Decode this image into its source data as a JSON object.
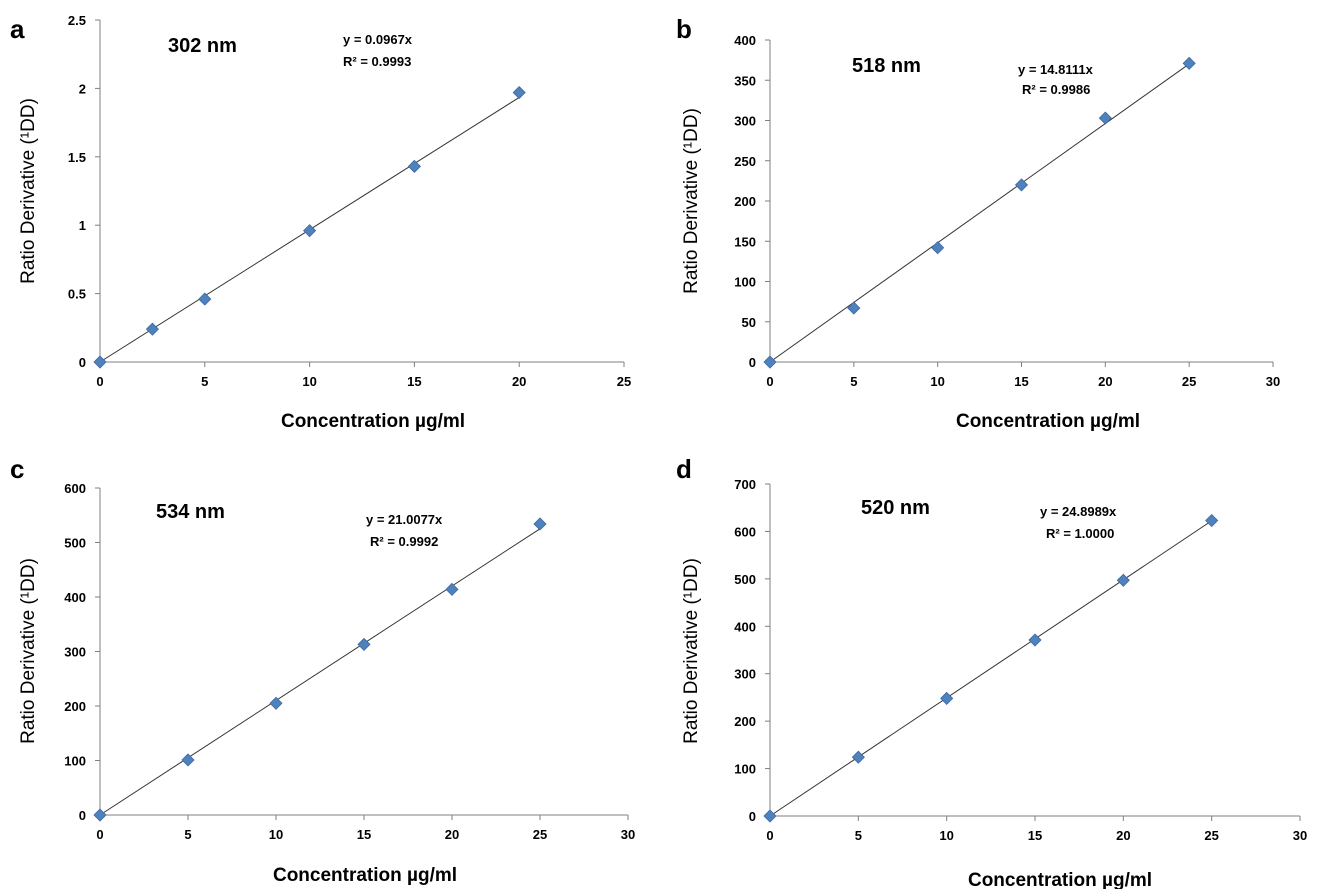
{
  "chart_data": [
    {
      "panel": "a",
      "type": "scatter",
      "annotation": "302 nm",
      "equation": "y = 0.0967x",
      "r2": "R² = 0.9993",
      "xlabel": "Concentration µg/ml",
      "ylabel": "Ratio Derivative (¹DD)",
      "xlim": [
        0,
        25
      ],
      "ylim": [
        0,
        2.5
      ],
      "x_ticks": [
        "0",
        "5",
        "10",
        "15",
        "20",
        "25"
      ],
      "y_ticks": [
        "0",
        "0.5",
        "1",
        "1.5",
        "2",
        "2.5"
      ],
      "x": [
        0,
        2.5,
        5,
        10,
        15,
        20
      ],
      "y": [
        0,
        0.24,
        0.46,
        0.96,
        1.43,
        1.97
      ],
      "slope": 0.0967
    },
    {
      "panel": "b",
      "type": "scatter",
      "annotation": "518 nm",
      "equation": "y = 14.8111x",
      "r2": "R² = 0.9986",
      "xlabel": "Concentration µg/ml",
      "ylabel": "Ratio Derivative (¹DD)",
      "xlim": [
        0,
        30
      ],
      "ylim": [
        0,
        400
      ],
      "x_ticks": [
        "0",
        "5",
        "10",
        "15",
        "20",
        "25",
        "30"
      ],
      "y_ticks": [
        "0",
        "50",
        "100",
        "150",
        "200",
        "250",
        "300",
        "350",
        "400"
      ],
      "x": [
        0,
        5,
        10,
        15,
        20,
        25
      ],
      "y": [
        0,
        67,
        142,
        220,
        303,
        371
      ],
      "slope": 14.8111
    },
    {
      "panel": "c",
      "type": "scatter",
      "annotation": "534 nm",
      "equation": "y = 21.0077x",
      "r2": "R² = 0.9992",
      "xlabel": "Concentration µg/ml",
      "ylabel": "Ratio Derivative (¹DD)",
      "xlim": [
        0,
        30
      ],
      "ylim": [
        0,
        600
      ],
      "x_ticks": [
        "0",
        "5",
        "10",
        "15",
        "20",
        "25",
        "30"
      ],
      "y_ticks": [
        "0",
        "100",
        "200",
        "300",
        "400",
        "500",
        "600"
      ],
      "x": [
        0,
        5,
        10,
        15,
        20,
        25
      ],
      "y": [
        0,
        101,
        205,
        313,
        414,
        534
      ],
      "slope": 21.0077
    },
    {
      "panel": "d",
      "type": "scatter",
      "annotation": "520 nm",
      "equation": "y = 24.8989x",
      "r2": "R² = 1.0000",
      "xlabel": "Concentration µg/ml",
      "ylabel": "Ratio Derivative (¹DD)",
      "xlim": [
        0,
        30
      ],
      "ylim": [
        0,
        700
      ],
      "x_ticks": [
        "0",
        "5",
        "10",
        "15",
        "20",
        "25",
        "30"
      ],
      "y_ticks": [
        "0",
        "100",
        "200",
        "300",
        "400",
        "500",
        "600",
        "700"
      ],
      "x": [
        0,
        5,
        10,
        15,
        20,
        25
      ],
      "y": [
        0,
        124,
        248,
        371,
        497,
        623
      ],
      "slope": 24.8989
    }
  ],
  "colors": {
    "marker": "#4f81bd",
    "marker_edge": "#3a6aa5",
    "trendline": "#333333",
    "axis": "#7f7f7f"
  }
}
